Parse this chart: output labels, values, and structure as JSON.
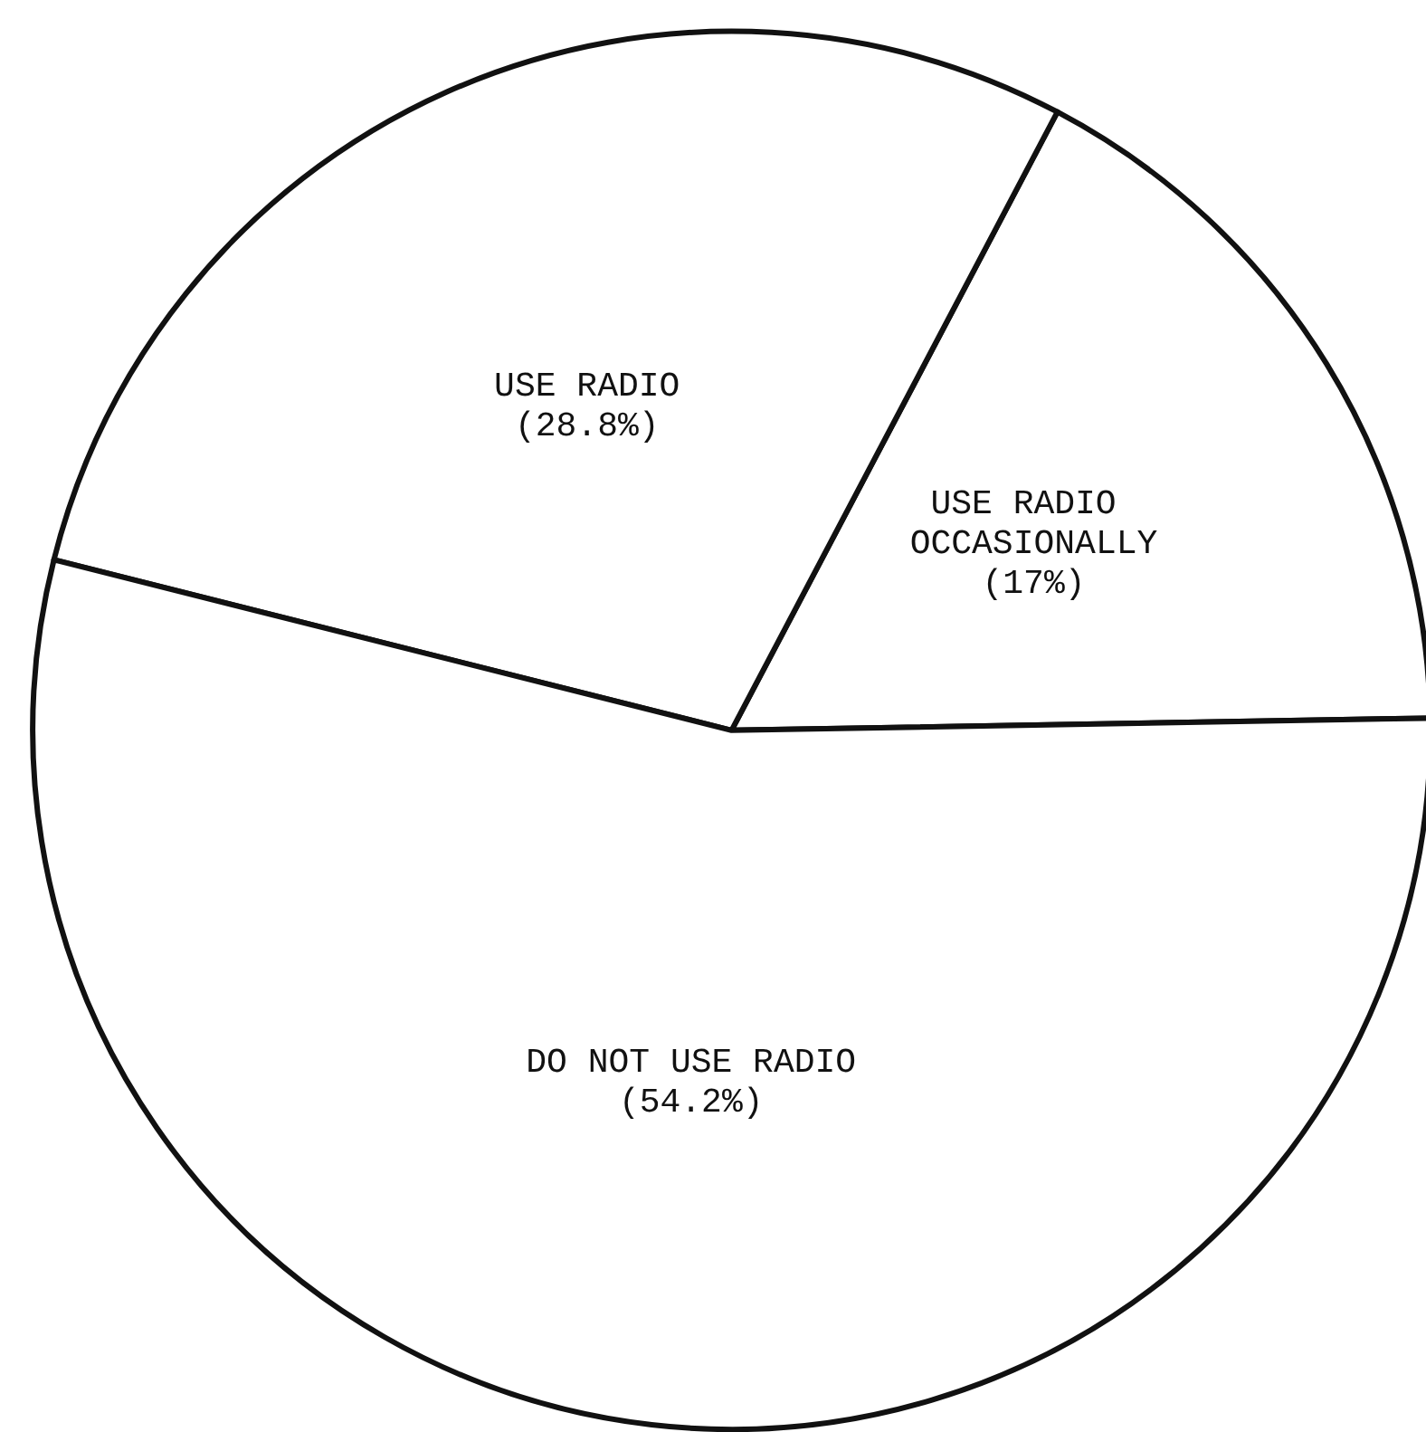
{
  "chart_data": {
    "type": "pie",
    "categories": [
      "USE RADIO OCCASIONALLY",
      "USE RADIO",
      "DO NOT USE RADIO"
    ],
    "values": [
      17,
      28.8,
      54.2
    ],
    "value_labels": [
      "(17%)",
      "(28.8%)",
      "(54.2%)"
    ],
    "colors": [
      "#ffffff",
      "#ffffff",
      "#ffffff"
    ],
    "legend": false
  }
}
